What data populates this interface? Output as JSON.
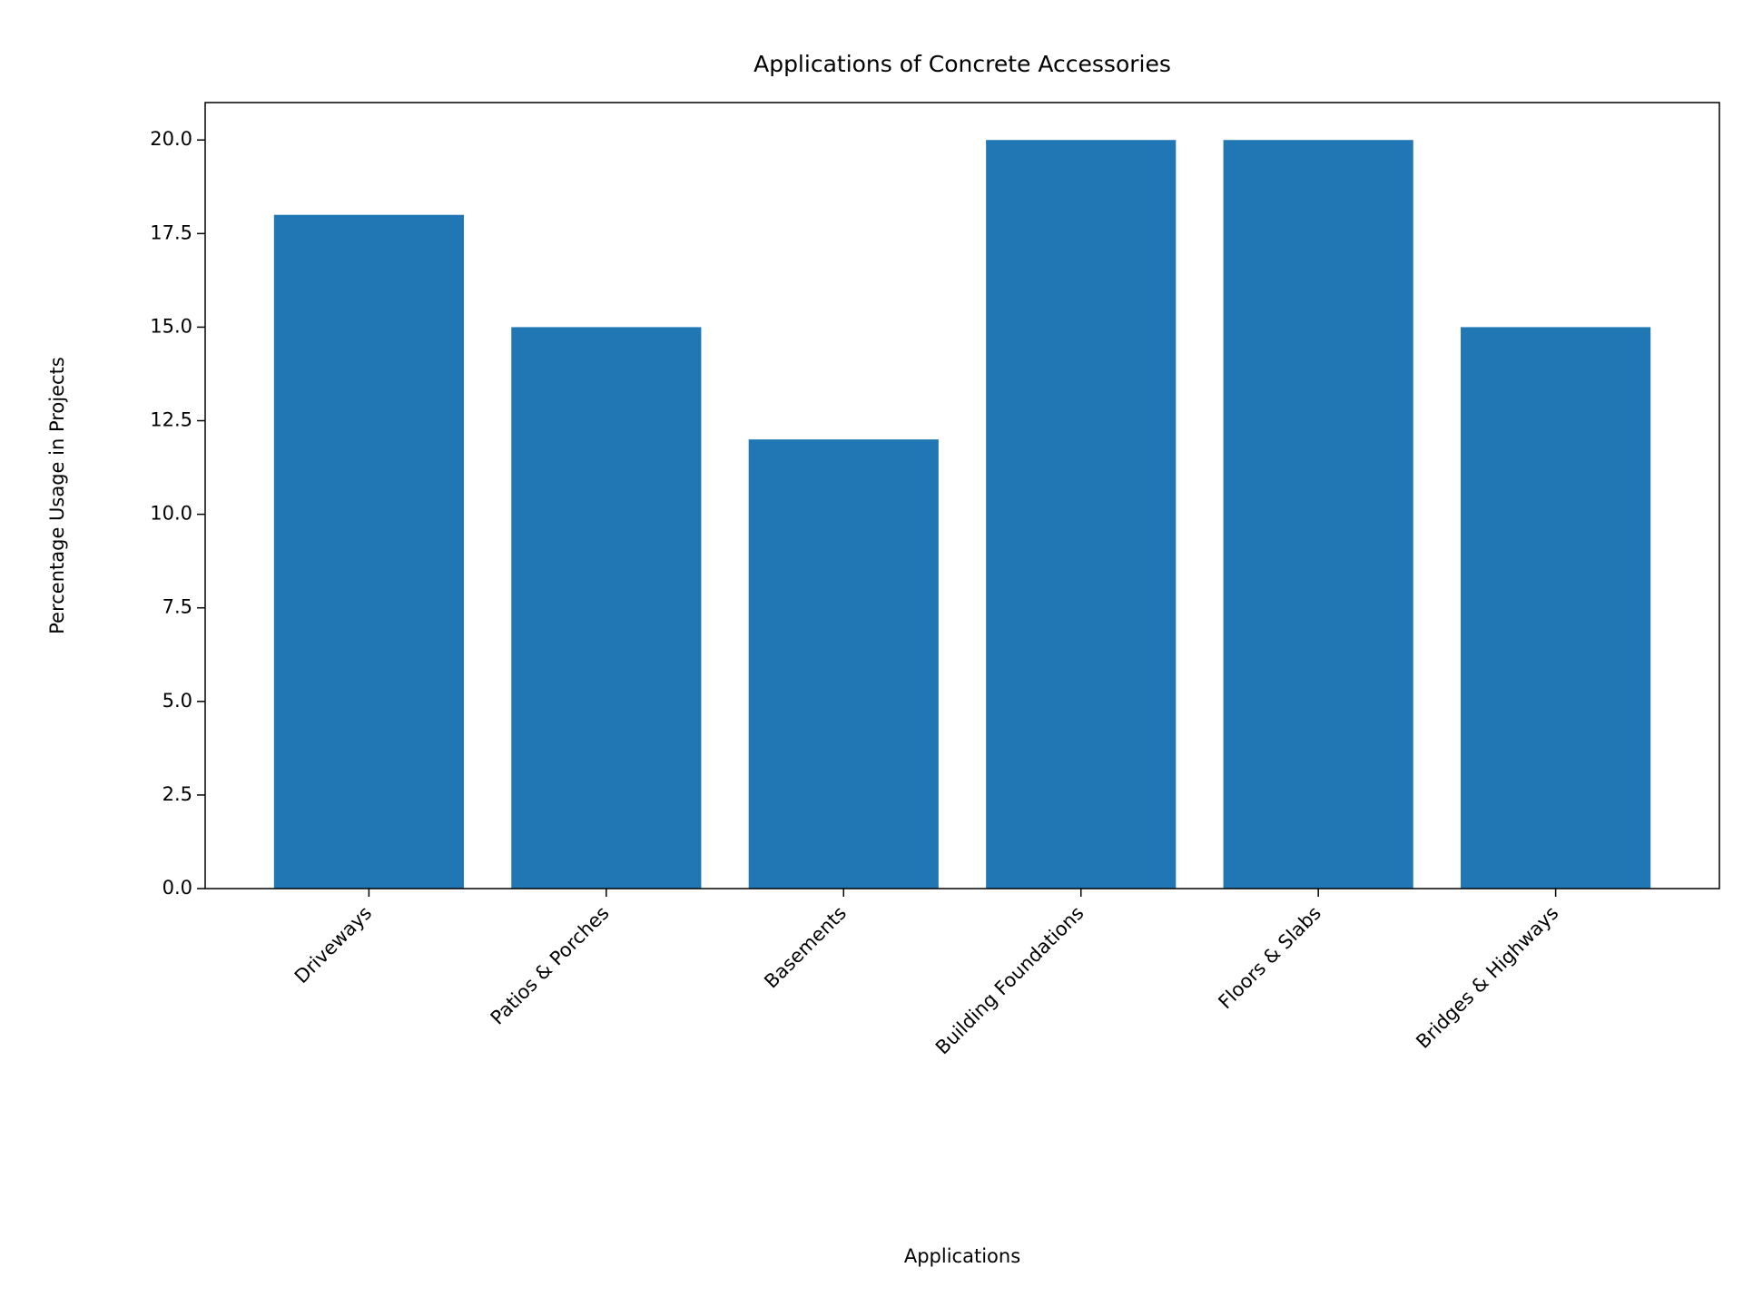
{
  "chart_data": {
    "type": "bar",
    "title": "Applications of Concrete Accessories",
    "x_label": "Applications",
    "y_label": "Percentage Usage in Projects",
    "categories": [
      "Driveways",
      "Patios & Porches",
      "Basements",
      "Building Foundations",
      "Floors & Slabs",
      "Bridges & Highways"
    ],
    "values": [
      18,
      15,
      12,
      20,
      20,
      15
    ],
    "color": "#2077b4",
    "ylim": [
      0,
      21
    ],
    "yticks": [
      {
        "value": 0,
        "label": "0.0"
      },
      2.5,
      {
        "value": 5,
        "label": "5.0"
      },
      7.5,
      {
        "value": 10,
        "label": "10.0"
      },
      12.5,
      {
        "value": 15,
        "label": "15.0"
      },
      17.5,
      {
        "value": 20,
        "label": "20.0"
      }
    ],
    "grid": false
  }
}
